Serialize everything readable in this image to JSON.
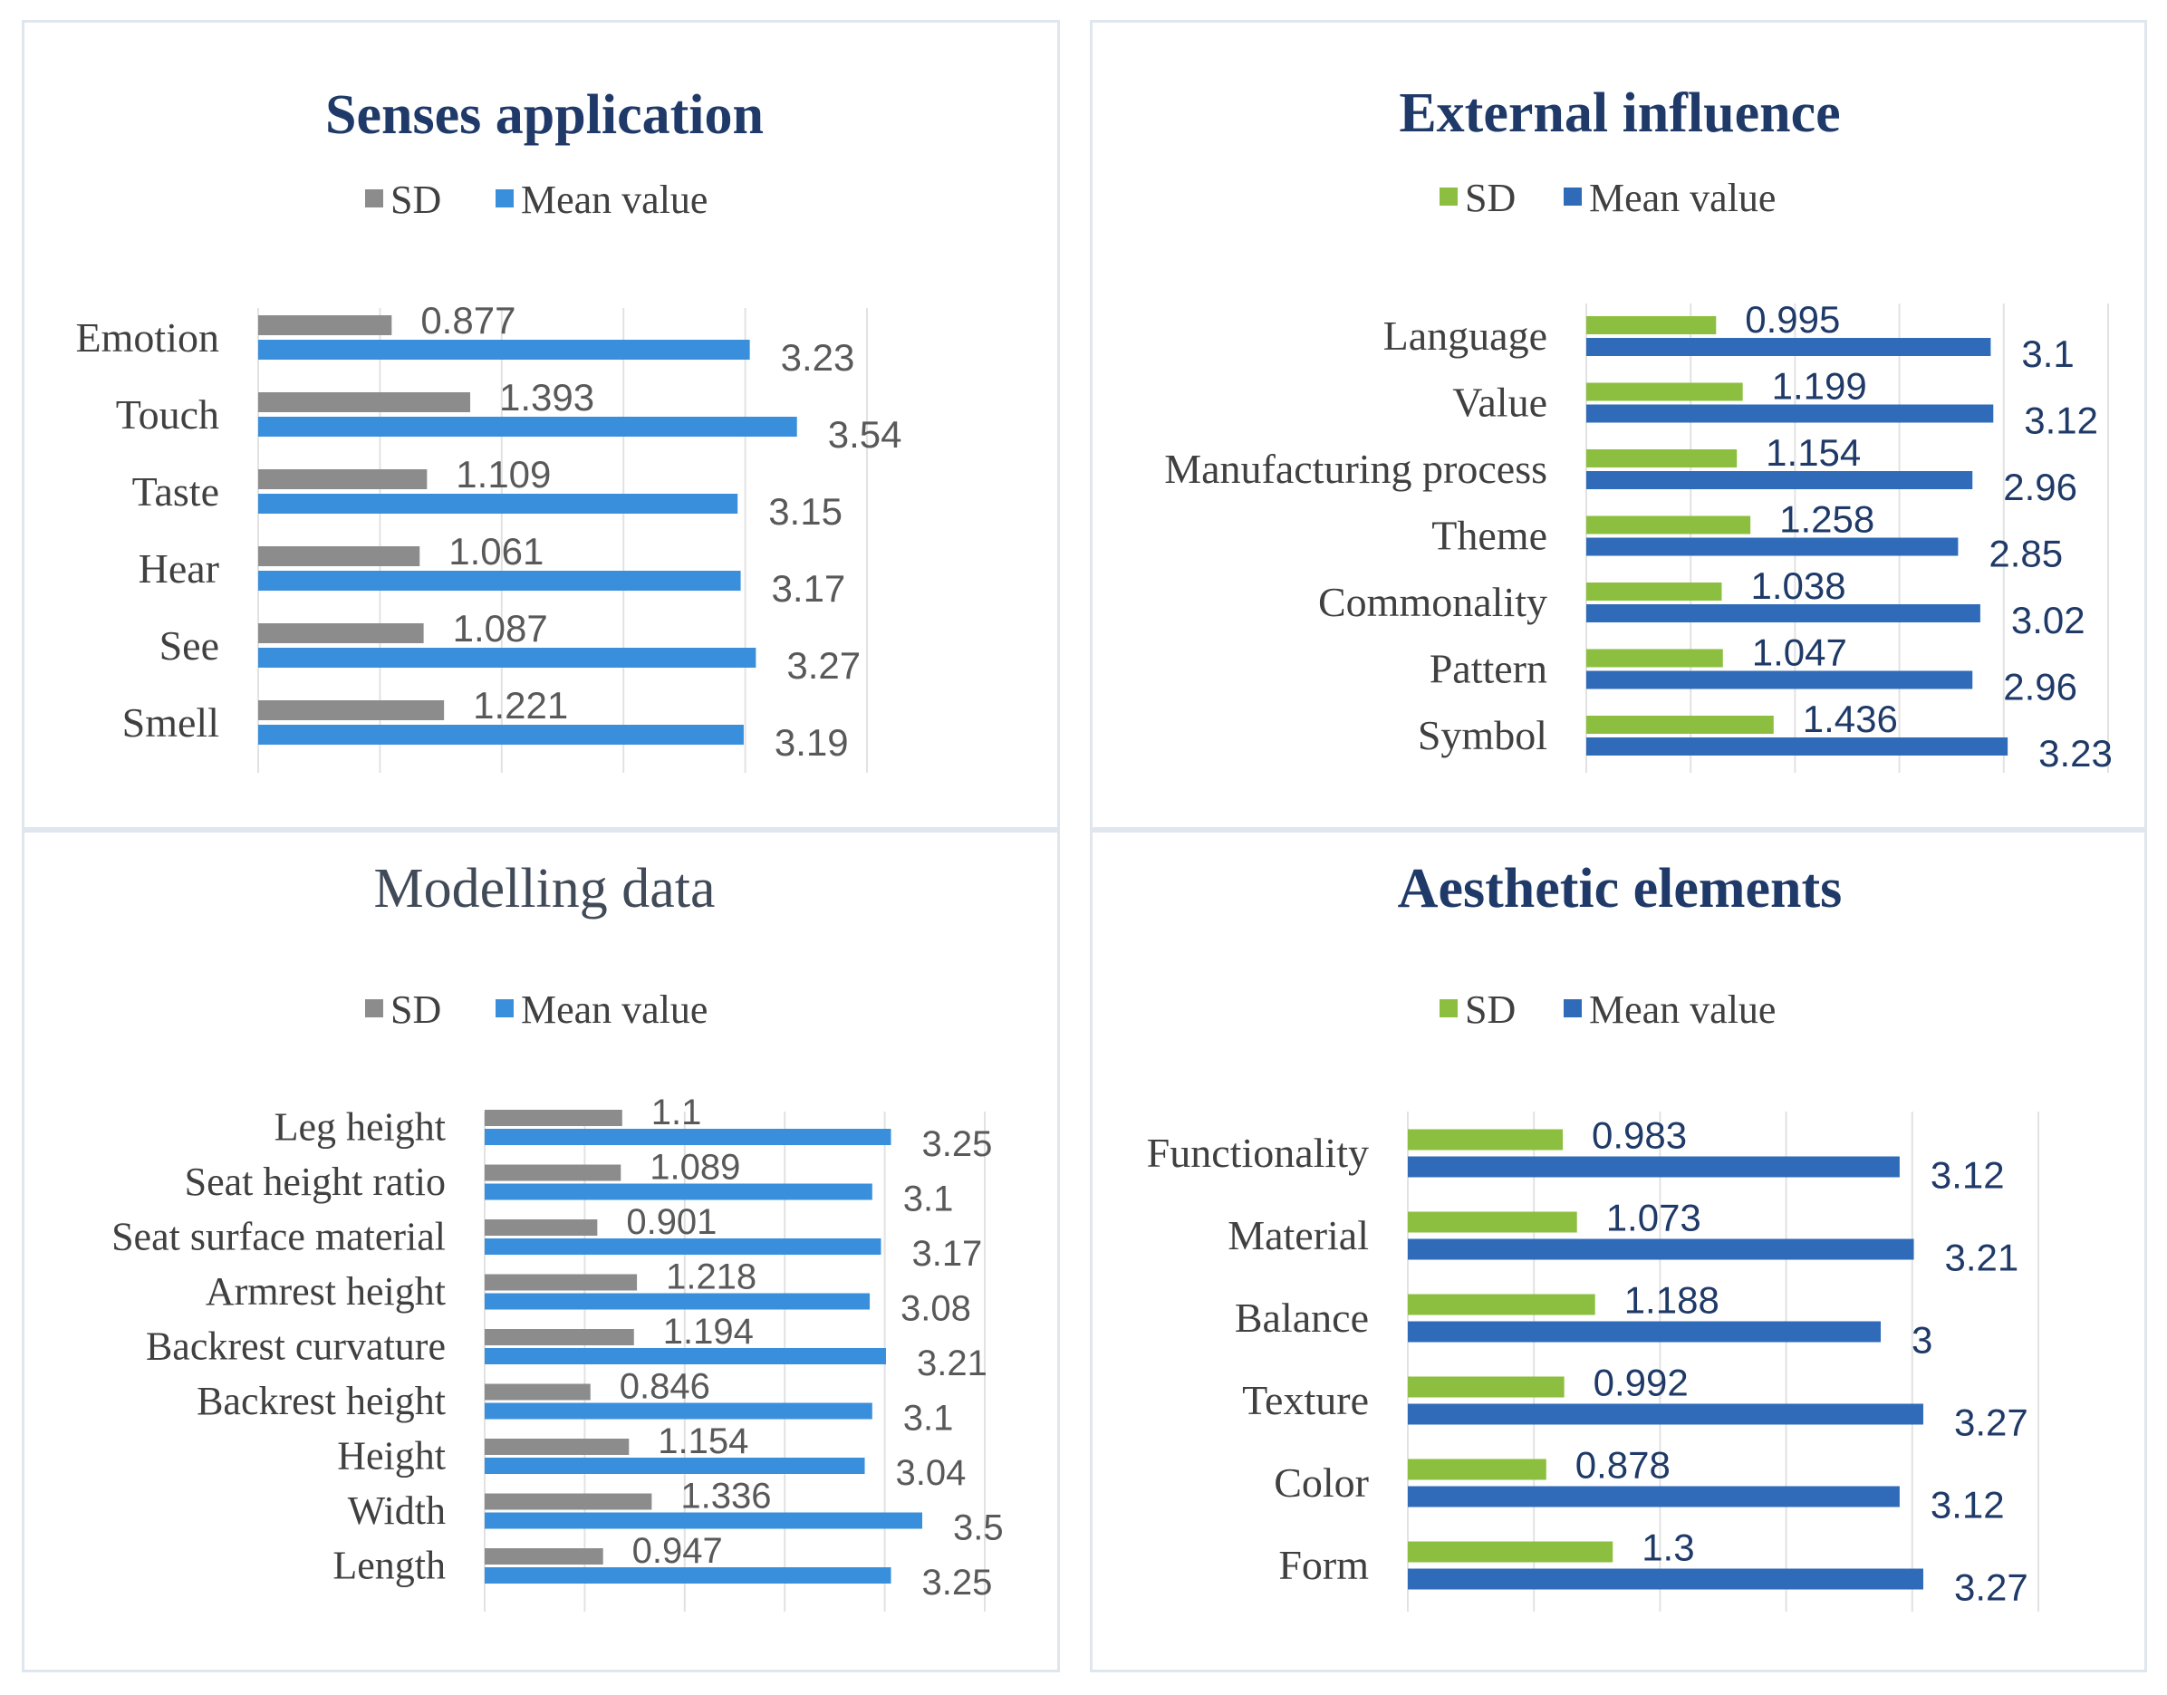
{
  "colors": {
    "gray": "#8c8c8c",
    "blue": "#3a8fdc",
    "green": "#8cbf3f",
    "navy": "#2f6bb8",
    "title_navy": "#1f3a68",
    "title_gray": "#404a58",
    "label_gray": "#404040",
    "value_gray": "#595959",
    "value_navy": "#1f3a68",
    "grid": "#e2e2e2"
  },
  "chart_data": [
    {
      "type": "bar",
      "orientation": "horizontal",
      "title": "Senses application",
      "title_bold": true,
      "legend": [
        "SD",
        "Mean value"
      ],
      "categories": [
        "Emotion",
        "Touch",
        "Taste",
        "Hear",
        "See",
        "Smell"
      ],
      "series": [
        {
          "name": "SD",
          "values": [
            0.877,
            1.393,
            1.109,
            1.061,
            1.087,
            1.221
          ]
        },
        {
          "name": "Mean value",
          "values": [
            3.23,
            3.54,
            3.15,
            3.17,
            3.27,
            3.19
          ]
        }
      ],
      "xlim": [
        0,
        4
      ],
      "grid": true
    },
    {
      "type": "bar",
      "orientation": "horizontal",
      "title": "External influence",
      "title_bold": true,
      "legend": [
        "SD",
        "Mean value"
      ],
      "categories": [
        "Language",
        "Value",
        "Manufacturing process",
        "Theme",
        "Commonality",
        "Pattern",
        "Symbol"
      ],
      "series": [
        {
          "name": "SD",
          "values": [
            0.995,
            1.199,
            1.154,
            1.258,
            1.038,
            1.047,
            1.436
          ]
        },
        {
          "name": "Mean value",
          "values": [
            3.1,
            3.12,
            2.96,
            2.85,
            3.02,
            2.96,
            3.23
          ]
        }
      ],
      "xlim": [
        0,
        4
      ],
      "grid": true
    },
    {
      "type": "bar",
      "orientation": "horizontal",
      "title": "Modelling data",
      "title_bold": false,
      "legend": [
        "SD",
        "Mean value"
      ],
      "categories": [
        "Leg height",
        "Seat height ratio",
        "Seat surface material",
        "Armrest height",
        "Backrest curvature",
        "Backrest height",
        "Height",
        "Width",
        "Length"
      ],
      "series": [
        {
          "name": "SD",
          "values": [
            1.1,
            1.089,
            0.901,
            1.218,
            1.194,
            0.846,
            1.154,
            1.336,
            0.947
          ]
        },
        {
          "name": "Mean value",
          "values": [
            3.25,
            3.1,
            3.17,
            3.08,
            3.21,
            3.1,
            3.04,
            3.5,
            3.25
          ]
        }
      ],
      "xlim": [
        0,
        4
      ],
      "grid": true
    },
    {
      "type": "bar",
      "orientation": "horizontal",
      "title": "Aesthetic elements",
      "title_bold": true,
      "legend": [
        "SD",
        "Mean value"
      ],
      "categories": [
        "Functionality",
        "Material",
        "Balance",
        "Texture",
        "Color",
        "Form"
      ],
      "series": [
        {
          "name": "SD",
          "values": [
            0.983,
            1.073,
            1.188,
            0.992,
            0.878,
            1.3
          ]
        },
        {
          "name": "Mean value",
          "values": [
            3.12,
            3.21,
            3.0,
            3.27,
            3.12,
            3.27
          ]
        }
      ],
      "value_labels": {
        "SD": [
          "0.983",
          "1.073",
          "1.188",
          "0.992",
          "0.878",
          "1.3"
        ],
        "Mean value": [
          "3.12",
          "3.21",
          "3",
          "3.27",
          "3.12",
          "3.27"
        ]
      },
      "xlim": [
        0,
        4
      ],
      "grid": true
    }
  ]
}
